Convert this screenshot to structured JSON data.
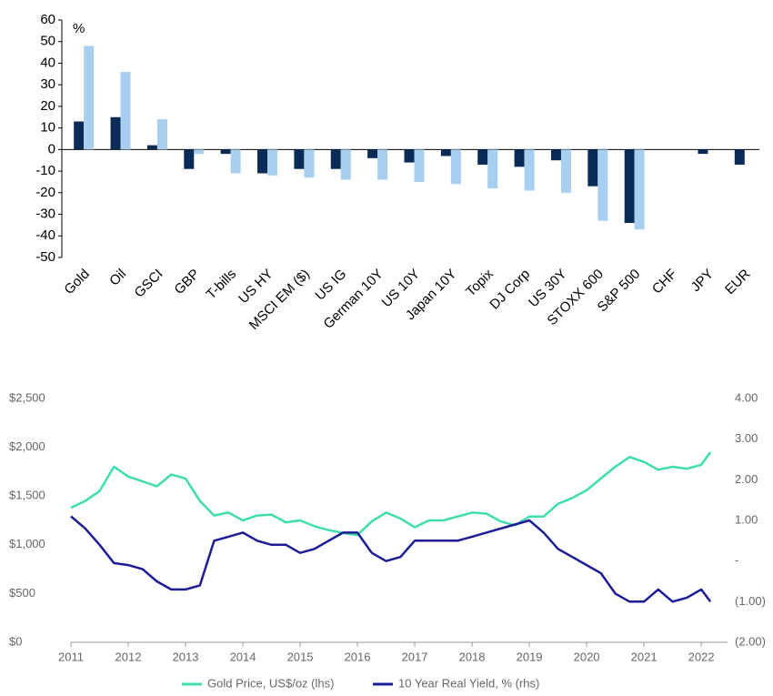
{
  "chart_data": [
    {
      "type": "bar",
      "unit": "%",
      "categories": [
        "Gold",
        "Oil",
        "GSCI",
        "GBP",
        "T-bills",
        "US HY",
        "MSCI EM ($)",
        "US IG",
        "German 10Y",
        "US 10Y",
        "Japan 10Y",
        "Topix",
        "DJ Corp",
        "US 30Y",
        "STOXX 600",
        "S&P 500",
        "CHF",
        "JPY",
        "EUR"
      ],
      "series": [
        {
          "color": "#0a2b55",
          "values": [
            13,
            15,
            2,
            -9,
            -2,
            -11,
            -9,
            -9,
            -4,
            -6,
            -3,
            -7,
            -8,
            -5,
            -17,
            -34,
            null,
            -2,
            -7
          ]
        },
        {
          "color": "#a9cff0",
          "values": [
            48,
            36,
            14,
            -2,
            -11,
            -12,
            -13,
            -14,
            -14,
            -15,
            -16,
            -18,
            -19,
            -20,
            -33,
            -37,
            null,
            null,
            null
          ]
        }
      ],
      "ylim": [
        -50,
        60
      ],
      "yticks": [
        -50,
        -40,
        -30,
        -20,
        -10,
        0,
        10,
        20,
        30,
        40,
        50,
        60
      ]
    },
    {
      "type": "line",
      "x": [
        2011,
        2011.25,
        2011.5,
        2011.75,
        2012,
        2012.25,
        2012.5,
        2012.75,
        2013,
        2013.25,
        2013.5,
        2013.75,
        2014,
        2014.25,
        2014.5,
        2014.75,
        2015,
        2015.25,
        2015.5,
        2015.75,
        2016,
        2016.25,
        2016.5,
        2016.75,
        2017,
        2017.25,
        2017.5,
        2017.75,
        2018,
        2018.25,
        2018.5,
        2018.75,
        2019,
        2019.25,
        2019.5,
        2019.75,
        2020,
        2020.25,
        2020.5,
        2020.75,
        2021,
        2021.25,
        2021.5,
        2021.75,
        2022,
        2022.16
      ],
      "series": [
        {
          "name": "Gold Price, US$/oz (lhs)",
          "color": "#3fdcae",
          "values": [
            1380,
            1450,
            1550,
            1800,
            1700,
            1650,
            1600,
            1720,
            1680,
            1450,
            1300,
            1330,
            1250,
            1300,
            1310,
            1230,
            1250,
            1190,
            1150,
            1120,
            1100,
            1240,
            1330,
            1270,
            1180,
            1250,
            1250,
            1290,
            1330,
            1320,
            1240,
            1200,
            1290,
            1290,
            1420,
            1480,
            1560,
            1680,
            1800,
            1900,
            1850,
            1770,
            1800,
            1780,
            1820,
            1950
          ]
        },
        {
          "name": "10 Year Real Yield, %  (rhs)",
          "color": "#1c1c96",
          "axis": "y2",
          "values": [
            1.1,
            0.8,
            0.4,
            -0.05,
            -0.1,
            -0.2,
            -0.5,
            -0.7,
            -0.7,
            -0.6,
            0.5,
            0.6,
            0.7,
            0.5,
            0.4,
            0.4,
            0.2,
            0.3,
            0.5,
            0.7,
            0.7,
            0.2,
            0.0,
            0.1,
            0.5,
            0.5,
            0.5,
            0.5,
            0.6,
            0.7,
            0.8,
            0.9,
            1.0,
            0.7,
            0.3,
            0.1,
            -0.1,
            -0.3,
            -0.8,
            -1.0,
            -1.0,
            -0.7,
            -1.0,
            -0.9,
            -0.7,
            -1.0
          ]
        }
      ],
      "xlim": [
        2011,
        2022.3
      ],
      "xticks": [
        2011,
        2012,
        2013,
        2014,
        2015,
        2016,
        2017,
        2018,
        2019,
        2020,
        2021,
        2022
      ],
      "ylim": [
        0,
        2500
      ],
      "yticks": [
        {
          "value": 0,
          "label": "$0"
        },
        {
          "value": 500,
          "label": "$500"
        },
        {
          "value": 1000,
          "label": "$1,000"
        },
        {
          "value": 1500,
          "label": "$1,500"
        },
        {
          "value": 2000,
          "label": "$2,000"
        },
        {
          "value": 2500,
          "label": "$2,500"
        }
      ],
      "y2lim": [
        -2,
        4
      ],
      "y2ticks": [
        {
          "value": -2,
          "label": "(2.00)"
        },
        {
          "value": -1,
          "label": "(1.00)"
        },
        {
          "value": 0,
          "label": "-"
        },
        {
          "value": 1,
          "label": "1.00"
        },
        {
          "value": 2,
          "label": "2.00"
        },
        {
          "value": 3,
          "label": "3.00"
        },
        {
          "value": 4,
          "label": "4.00"
        }
      ]
    }
  ]
}
